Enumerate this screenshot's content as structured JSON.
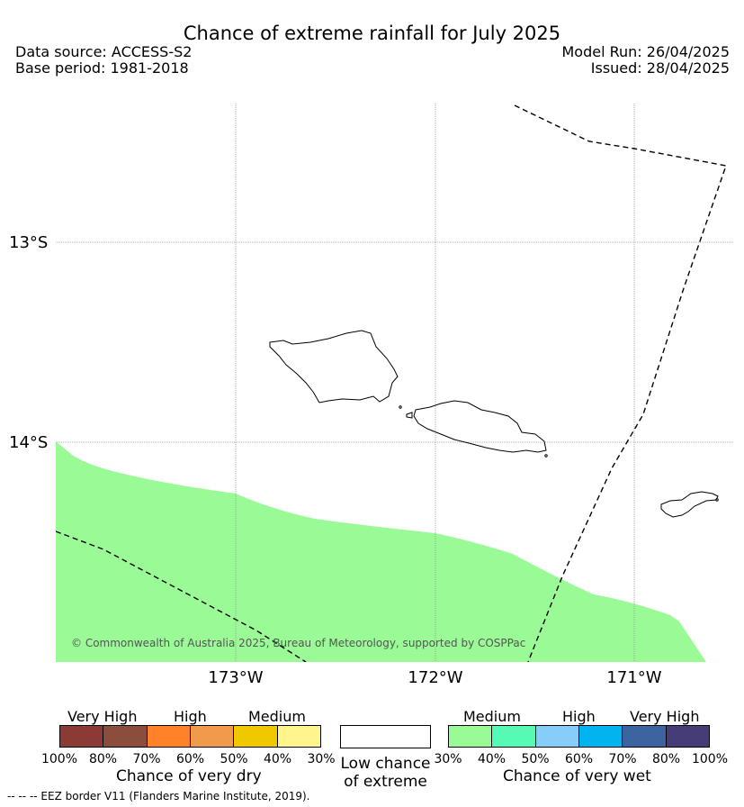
{
  "title": "Chance of extreme rainfall for July 2025",
  "meta": {
    "data_source": "Data source: ACCESS-S2",
    "base_period": "Base period: 1981-2018",
    "model_run": "Model Run: 26/04/2025",
    "issued": "Issued: 28/04/2025"
  },
  "map": {
    "lat_labels": [
      "13°S",
      "14°S"
    ],
    "lon_labels": [
      "173°W",
      "172°W",
      "171°W"
    ],
    "copyright": "© Commonwealth of Australia 2025, Bureau of Meteorology, supported by COSPPac",
    "fill_color": "#9afa96",
    "fill_meaning": "Medium chance of very wet (30%-40%)"
  },
  "legend_dry": {
    "categories": [
      "Very High",
      "High",
      "Medium"
    ],
    "colors": [
      "#8b3a35",
      "#8b4d3c",
      "#ff8228",
      "#f09b4b",
      "#f0c800",
      "#fff58c"
    ],
    "ticks": [
      "100%",
      "80%",
      "70%",
      "60%",
      "50%",
      "40%",
      "30%"
    ],
    "caption": "Chance of very dry"
  },
  "legend_low": {
    "caption_line1": "Low chance",
    "caption_line2": "of extreme"
  },
  "legend_wet": {
    "categories": [
      "Medium",
      "High",
      "Very High"
    ],
    "colors": [
      "#9afa96",
      "#55fab4",
      "#87cdfa",
      "#00b4f0",
      "#3c64a0",
      "#463c78"
    ],
    "ticks": [
      "30%",
      "40%",
      "50%",
      "60%",
      "70%",
      "80%",
      "100%"
    ],
    "caption": "Chance of very wet"
  },
  "footnote": "--  --  -- EEZ border V11 (Flanders Marine Institute, 2019)."
}
